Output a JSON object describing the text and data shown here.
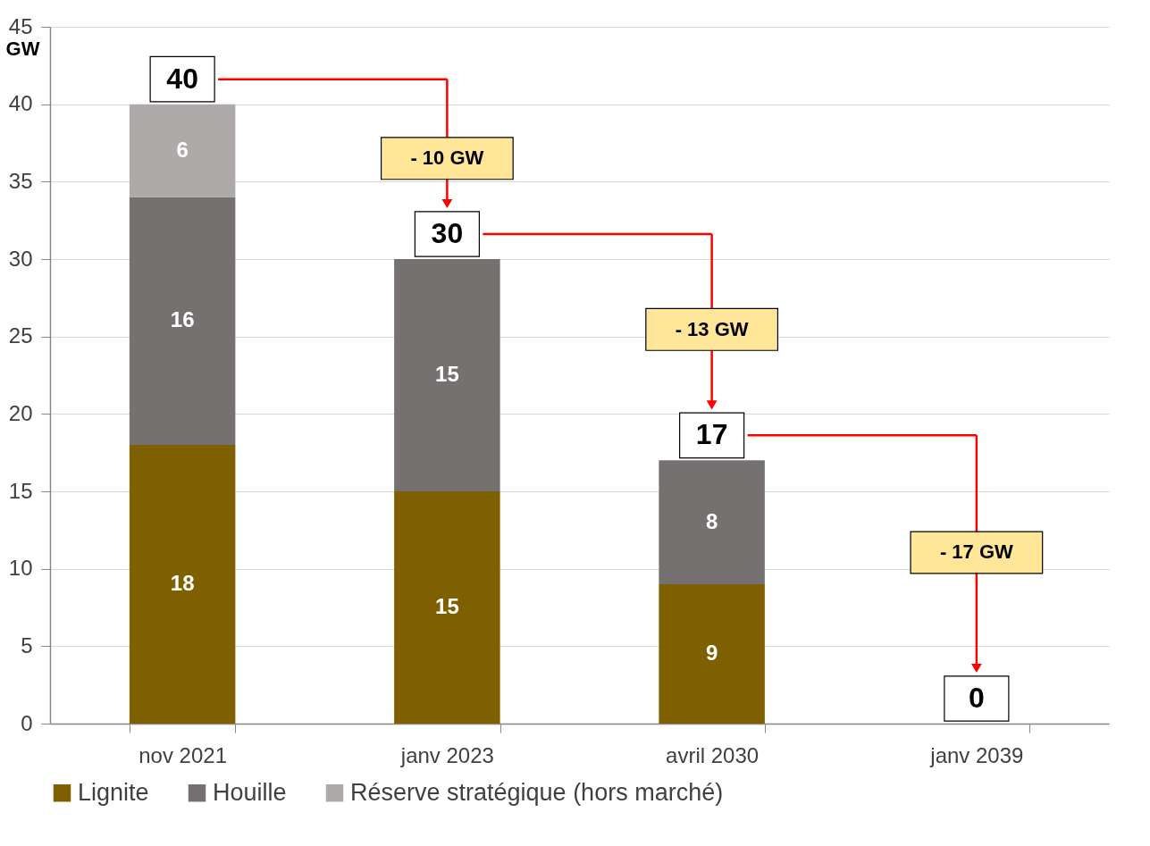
{
  "chart_data": {
    "type": "bar",
    "stacked": true,
    "ylabel": "GW",
    "categories": [
      "nov 2021",
      "janv 2023",
      "avril 2030",
      "janv 2039"
    ],
    "series": [
      {
        "name": "Lignite",
        "color": "#7f6000",
        "values": [
          18,
          15,
          9,
          null
        ]
      },
      {
        "name": "Houille",
        "color": "#767171",
        "values": [
          16,
          15,
          8,
          null
        ]
      },
      {
        "name": "Réserve stratégique (hors marché)",
        "color": "#aeaaaa",
        "values": [
          6,
          null,
          null,
          null
        ]
      }
    ],
    "data_labels": true,
    "totals": [
      "40",
      "30",
      "17",
      "0"
    ],
    "annotations": [
      "- 10 GW",
      "- 13 GW",
      "- 17 GW"
    ],
    "ylim": [
      0,
      45
    ],
    "yticks": [
      0,
      5,
      10,
      15,
      20,
      25,
      30,
      35,
      40,
      45
    ],
    "grid": "y",
    "legend": "bottom"
  }
}
